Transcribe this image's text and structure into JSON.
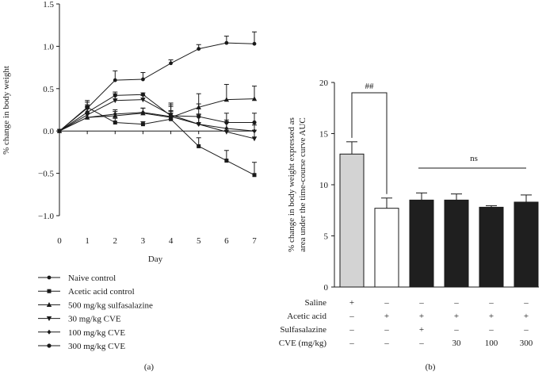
{
  "chart_data": [
    {
      "type": "line",
      "panel_label": "(a)",
      "xlabel": "Day",
      "ylabel": "% change in body weight",
      "xlim": [
        0,
        7
      ],
      "ylim": [
        -1.0,
        1.5
      ],
      "xticks": [
        "0",
        "1",
        "2",
        "3",
        "4",
        "5",
        "6",
        "7"
      ],
      "yticks": [
        "-1.0",
        "-0.5",
        "0.0",
        "0.5",
        "1.0",
        "1.5"
      ],
      "x": [
        0,
        1,
        2,
        3,
        4,
        5,
        6,
        7
      ],
      "series": [
        {
          "name": "Naive control",
          "marker": "circle",
          "values": [
            0,
            0.27,
            0.6,
            0.61,
            0.8,
            0.97,
            1.04,
            1.03
          ],
          "errors": [
            0,
            0.07,
            0.11,
            0.08,
            0.04,
            0.05,
            0.08,
            0.14
          ]
        },
        {
          "name": "Acetic acid control",
          "marker": "square",
          "values": [
            0,
            0.28,
            0.1,
            0.08,
            0.14,
            -0.18,
            -0.35,
            -0.52
          ],
          "errors": [
            0,
            0.08,
            0.05,
            0.03,
            0.1,
            0.1,
            0.12,
            0.15
          ]
        },
        {
          "name": "500 mg/kg sulfasalazine",
          "marker": "triangle-up",
          "values": [
            0,
            0.16,
            0.18,
            0.21,
            0.16,
            0.28,
            0.37,
            0.38
          ],
          "errors": [
            0,
            0.12,
            0.05,
            0.06,
            0.07,
            0.16,
            0.18,
            0.15
          ]
        },
        {
          "name": "30 mg/kg CVE",
          "marker": "triangle-down",
          "values": [
            0,
            0.19,
            0.36,
            0.37,
            0.19,
            0.08,
            -0.01,
            -0.09
          ],
          "errors": [
            0,
            0.1,
            0.08,
            0.05,
            0.1,
            0.12,
            0.12,
            0.1
          ]
        },
        {
          "name": "100 mg/kg CVE",
          "marker": "diamond",
          "values": [
            0,
            0.16,
            0.2,
            0.22,
            0.17,
            0.08,
            0.03,
            0.0
          ],
          "errors": [
            0,
            0.05,
            0.05,
            0.05,
            0.14,
            0.11,
            0.1,
            0.07
          ]
        },
        {
          "name": "300 mg/kg CVE",
          "marker": "big-circle",
          "values": [
            0,
            0.22,
            0.42,
            0.43,
            0.18,
            0.17,
            0.1,
            0.1
          ],
          "errors": [
            0,
            0.09,
            0.04,
            0.02,
            0.15,
            0.15,
            0.11,
            0.11
          ]
        }
      ]
    },
    {
      "type": "bar",
      "panel_label": "(b)",
      "ylabel_lines": [
        "% change in body weight expressed as",
        "area under the time-course curve AUC"
      ],
      "ylim": [
        0,
        20
      ],
      "yticks": [
        "0",
        "5",
        "10",
        "15",
        "20"
      ],
      "values": [
        13.0,
        7.7,
        8.5,
        8.5,
        7.8,
        8.3
      ],
      "errors": [
        1.2,
        1.0,
        0.7,
        0.6,
        0.15,
        0.7
      ],
      "bar_colors": [
        "#d3d3d3",
        "#ffffff",
        "#1f1f1f",
        "#1f1f1f",
        "#1f1f1f",
        "#1f1f1f"
      ],
      "annotations": [
        {
          "text": "##",
          "from_bar": 0,
          "to_bar": 1
        },
        {
          "text": "ns",
          "from_bar": 2,
          "to_bar": 5
        }
      ],
      "treatment_rows": [
        {
          "label": "Saline",
          "values": [
            "+",
            "–",
            "–",
            "–",
            "–",
            "–"
          ]
        },
        {
          "label": "Acetic acid",
          "values": [
            "–",
            "+",
            "+",
            "+",
            "+",
            "+"
          ]
        },
        {
          "label": "Sulfasalazine",
          "values": [
            "–",
            "–",
            "+",
            "–",
            "–",
            "–"
          ]
        },
        {
          "label": "CVE (mg/kg)",
          "values": [
            "–",
            "–",
            "–",
            "30",
            "100",
            "300"
          ]
        }
      ]
    }
  ]
}
